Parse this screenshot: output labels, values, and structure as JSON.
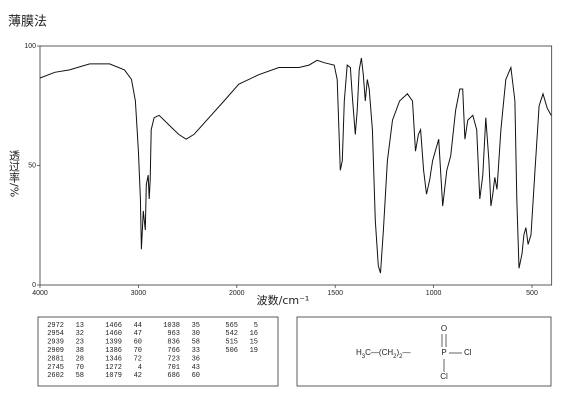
{
  "chart_data": {
    "type": "line",
    "title": "薄膜法",
    "x_label": "波数/cm⁻¹",
    "y_label": "透过率/%",
    "color": "#111111",
    "xlim": [
      4000,
      400
    ],
    "xticks": [
      4000,
      3000,
      2000,
      1500,
      1000,
      500
    ],
    "ylim": [
      0,
      100
    ],
    "yticks": [
      0,
      50,
      100
    ],
    "x": [
      4000,
      3850,
      3700,
      3495,
      3293,
      3141,
      3070,
      3030,
      3000,
      2980,
      2970,
      2950,
      2930,
      2920,
      2900,
      2890,
      2880,
      2870,
      2840,
      2790,
      2690,
      2590,
      2515,
      2435,
      2283,
      2130,
      1990,
      1888,
      1786,
      1684,
      1633,
      1592,
      1556,
      1505,
      1490,
      1474,
      1464,
      1454,
      1439,
      1423,
      1413,
      1398,
      1388,
      1378,
      1367,
      1357,
      1347,
      1337,
      1327,
      1311,
      1296,
      1281,
      1270,
      1255,
      1235,
      1209,
      1173,
      1133,
      1107,
      1092,
      1077,
      1066,
      1051,
      1036,
      1020,
      1005,
      974,
      954,
      933,
      913,
      888,
      867,
      852,
      841,
      826,
      801,
      781,
      765,
      750,
      735,
      719,
      709,
      699,
      689,
      678,
      658,
      633,
      607,
      587,
      577,
      566,
      551,
      541,
      531,
      520,
      505,
      485,
      464,
      444,
      423,
      403
    ],
    "values": [
      86.6,
      89,
      90,
      92.5,
      92.5,
      90,
      86,
      77,
      56,
      36,
      15,
      31,
      23,
      42,
      46,
      36,
      44,
      65,
      70,
      71,
      67,
      63,
      61,
      63,
      70,
      77,
      84,
      88,
      91,
      91,
      92,
      94,
      93,
      92,
      86,
      48,
      52,
      77,
      92,
      91,
      79,
      63,
      73,
      90,
      95,
      88,
      77,
      86,
      82,
      65,
      27,
      8,
      5,
      23,
      52,
      69,
      77,
      80,
      77,
      56,
      63,
      65,
      48,
      38,
      44,
      52,
      61,
      33,
      48,
      54,
      73,
      82,
      82,
      61,
      69,
      71,
      65,
      36,
      46,
      70,
      52,
      33,
      38,
      45,
      40,
      65,
      86,
      91,
      77,
      36,
      7,
      13,
      21,
      24,
      17,
      21,
      48,
      75,
      80,
      74,
      71
    ]
  },
  "peak_table": {
    "columns": [
      [
        [
          2972,
          13
        ],
        [
          2954,
          32
        ],
        [
          2939,
          23
        ],
        [
          2909,
          38
        ],
        [
          2881,
          28
        ],
        [
          2745,
          70
        ],
        [
          2602,
          58
        ]
      ],
      [
        [
          1466,
          44
        ],
        [
          1460,
          47
        ],
        [
          1399,
          60
        ],
        [
          1386,
          70
        ],
        [
          1346,
          72
        ],
        [
          1272,
          4
        ],
        [
          1079,
          42
        ]
      ],
      [
        [
          1038,
          35
        ],
        [
          963,
          30
        ],
        [
          836,
          58
        ],
        [
          766,
          33
        ],
        [
          723,
          36
        ],
        [
          701,
          43
        ],
        [
          686,
          60
        ]
      ],
      [
        [
          565,
          5
        ],
        [
          542,
          16
        ],
        [
          515,
          15
        ],
        [
          506,
          19
        ]
      ]
    ]
  },
  "structure": {
    "chain": [
      {
        "text": "H"
      },
      {
        "text": "3",
        "sub": true
      },
      {
        "text": "C—(CH"
      },
      {
        "text": "2",
        "sub": true
      },
      {
        "text": ")"
      },
      {
        "text": "2",
        "sub": true
      },
      {
        "text": "—"
      }
    ],
    "atom": "P",
    "top": "O",
    "right": "Cl",
    "bottom": "Cl"
  }
}
